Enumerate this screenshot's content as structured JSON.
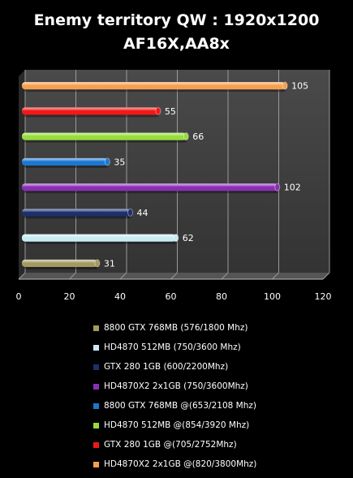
{
  "chart_data": {
    "type": "bar",
    "orientation": "horizontal",
    "title": "Enemy territory QW : 1920x1200",
    "subtitle": "AF16X,AA8x",
    "xlim": [
      0,
      120
    ],
    "xticks": [
      0,
      20,
      40,
      60,
      80,
      100,
      120
    ],
    "grid": true,
    "legend_position": "bottom",
    "series": [
      {
        "name": "8800 GTX 768MB (576/1800 Mhz)",
        "value": 31,
        "color": "#a29a62"
      },
      {
        "name": "HD4870 512MB (750/3600 Mhz)",
        "value": 62,
        "color": "#c8ecf4"
      },
      {
        "name": "GTX 280 1GB (600/2200Mhz)",
        "value": 44,
        "color": "#1c2f6e"
      },
      {
        "name": "HD4870X2 2x1GB (750/3600Mhz)",
        "value": 102,
        "color": "#8a2fb4"
      },
      {
        "name": "8800 GTX 768MB @(653/2108 Mhz)",
        "value": 35,
        "color": "#1a78d0"
      },
      {
        "name": "HD4870 512MB @(854/3920 Mhz)",
        "value": 66,
        "color": "#96dc3c"
      },
      {
        "name": "GTX 280 1GB @(705/2752Mhz)",
        "value": 55,
        "color": "#f01818"
      },
      {
        "name": "HD4870X2 2x1GB @(820/3800Mhz)",
        "value": 105,
        "color": "#f4a050"
      }
    ]
  }
}
